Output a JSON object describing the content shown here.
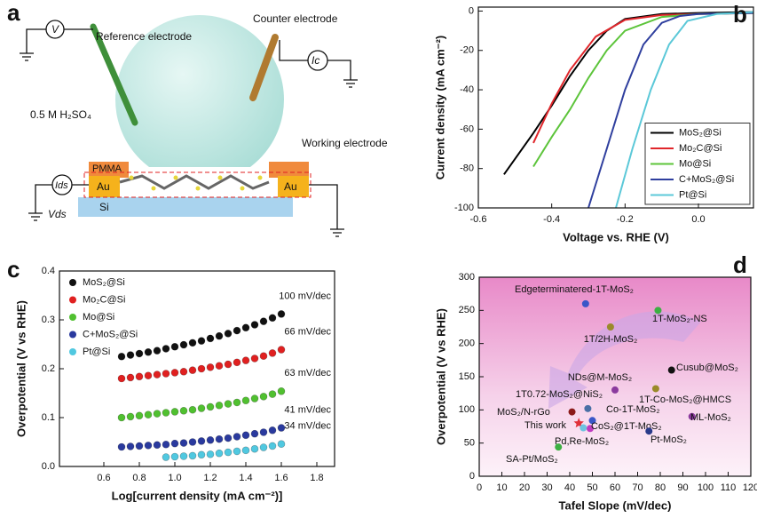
{
  "diagram": {
    "panel": "a",
    "reference": "Reference electrode",
    "counter": "Counter electrode",
    "electrolyte": "0.5 M H₂SO₄",
    "working": "Working electrode",
    "pmma": "PMMA",
    "au_left": "Au",
    "au_right": "Au",
    "si": "Si",
    "voltmeter": "V",
    "ic": "Ic",
    "ids": "Ids",
    "vds": "Vds"
  },
  "chart_data": [
    {
      "panel": "b",
      "type": "line",
      "xlabel": "Voltage vs. RHE (V)",
      "ylabel": "Current density (mA cm⁻²)",
      "xlim": [
        -0.6,
        0.15
      ],
      "ylim": [
        -100,
        2
      ],
      "xticks": [
        -0.6,
        -0.4,
        -0.2,
        {
          "value": 0,
          "label": "0.0"
        }
      ],
      "yticks": [
        -100,
        -80,
        -60,
        -40,
        -20,
        0
      ],
      "legend": "lower right",
      "series": [
        {
          "name": "MoS₂@Si",
          "color": "#000000",
          "x": [
            -0.53,
            -0.45,
            -0.4,
            -0.35,
            -0.3,
            -0.25,
            -0.2,
            -0.1,
            0,
            0.15
          ],
          "values": [
            -83,
            -62,
            -48,
            -33,
            -20,
            -10,
            -4,
            -1.5,
            -1,
            -0.5
          ]
        },
        {
          "name": "Mo₂C@Si",
          "color": "#e0262b",
          "x": [
            -0.45,
            -0.4,
            -0.35,
            -0.28,
            -0.2,
            -0.1,
            0,
            0.15
          ],
          "values": [
            -67,
            -47,
            -30,
            -13,
            -4.5,
            -2,
            -1.5,
            -1
          ]
        },
        {
          "name": "Mo@Si",
          "color": "#5cc43a",
          "x": [
            -0.45,
            -0.4,
            -0.35,
            -0.3,
            -0.25,
            -0.2,
            -0.1,
            0,
            0.15
          ],
          "values": [
            -79,
            -64,
            -50,
            -34,
            -20,
            -10,
            -3,
            -1.5,
            -1
          ]
        },
        {
          "name": "C+MoS₂@Si",
          "color": "#2f3f9e",
          "x": [
            -0.3,
            -0.25,
            -0.2,
            -0.15,
            -0.1,
            -0.05,
            0,
            0.15
          ],
          "values": [
            -100,
            -70,
            -40,
            -17,
            -6,
            -2.5,
            -1.5,
            -1
          ]
        },
        {
          "name": "Pt@Si",
          "color": "#5bc8d8",
          "x": [
            -0.225,
            -0.18,
            -0.13,
            -0.08,
            -0.03,
            0.05,
            0.15
          ],
          "values": [
            -100,
            -70,
            -40,
            -17,
            -5,
            -1.5,
            -0.5
          ]
        }
      ]
    },
    {
      "panel": "c",
      "type": "scatter",
      "xlabel": "Log[current density (mA cm⁻²)]",
      "ylabel": "Overpotential (V vs RHE)",
      "xlim": [
        0.35,
        1.9
      ],
      "ylim": [
        0,
        0.4
      ],
      "xticks": [
        0.6,
        0.8,
        {
          "value": 1,
          "label": "1.0"
        },
        1.2,
        1.4,
        1.6,
        1.8
      ],
      "yticks": [
        {
          "value": 0,
          "label": "0.0"
        },
        0.1,
        0.2,
        0.3,
        0.4
      ],
      "legend": "upper left",
      "series": [
        {
          "name": "MoS₂@Si",
          "color": "#111111",
          "x": [
            0.7,
            0.75,
            0.8,
            0.85,
            0.9,
            0.95,
            1,
            1.05,
            1.1,
            1.15,
            1.2,
            1.25,
            1.3,
            1.35,
            1.4,
            1.45,
            1.5,
            1.55,
            1.6
          ],
          "values": [
            0.225,
            0.228,
            0.231,
            0.234,
            0.237,
            0.241,
            0.245,
            0.249,
            0.253,
            0.257,
            0.262,
            0.267,
            0.272,
            0.278,
            0.284,
            0.29,
            0.297,
            0.304,
            0.312
          ]
        },
        {
          "name": "Mo₂C@Si",
          "color": "#e02020",
          "x": [
            0.7,
            0.75,
            0.8,
            0.85,
            0.9,
            0.95,
            1,
            1.05,
            1.1,
            1.15,
            1.2,
            1.25,
            1.3,
            1.35,
            1.4,
            1.45,
            1.5,
            1.55,
            1.6
          ],
          "values": [
            0.18,
            0.182,
            0.184,
            0.186,
            0.188,
            0.19,
            0.192,
            0.194,
            0.197,
            0.2,
            0.203,
            0.206,
            0.209,
            0.213,
            0.217,
            0.221,
            0.226,
            0.232,
            0.239
          ]
        },
        {
          "name": "Mo@Si",
          "color": "#50c030",
          "x": [
            0.7,
            0.75,
            0.8,
            0.85,
            0.9,
            0.95,
            1,
            1.05,
            1.1,
            1.15,
            1.2,
            1.25,
            1.3,
            1.35,
            1.4,
            1.45,
            1.5,
            1.55,
            1.6
          ],
          "values": [
            0.1,
            0.102,
            0.104,
            0.106,
            0.108,
            0.11,
            0.112,
            0.114,
            0.116,
            0.119,
            0.122,
            0.125,
            0.128,
            0.131,
            0.135,
            0.139,
            0.143,
            0.148,
            0.154
          ]
        },
        {
          "name": "C+MoS₂@Si",
          "color": "#2a3a9e",
          "x": [
            0.7,
            0.75,
            0.8,
            0.85,
            0.9,
            0.95,
            1,
            1.05,
            1.1,
            1.15,
            1.2,
            1.25,
            1.3,
            1.35,
            1.4,
            1.45,
            1.5,
            1.55,
            1.6
          ],
          "values": [
            0.04,
            0.041,
            0.042,
            0.043,
            0.044,
            0.045,
            0.047,
            0.048,
            0.05,
            0.052,
            0.054,
            0.056,
            0.058,
            0.061,
            0.064,
            0.067,
            0.07,
            0.074,
            0.079
          ]
        },
        {
          "name": "Pt@Si",
          "color": "#50c8e0",
          "x": [
            0.95,
            1,
            1.05,
            1.1,
            1.15,
            1.2,
            1.25,
            1.3,
            1.35,
            1.4,
            1.45,
            1.5,
            1.55,
            1.6
          ],
          "values": [
            0.019,
            0.02,
            0.021,
            0.022,
            0.024,
            0.025,
            0.027,
            0.029,
            0.031,
            0.033,
            0.036,
            0.039,
            0.042,
            0.046
          ]
        }
      ],
      "annotations": [
        "100 mV/dec",
        "66 mV/dec",
        "63 mV/dec",
        "41 mV/dec",
        "34 mV/dec"
      ]
    },
    {
      "panel": "d",
      "type": "scatter",
      "xlabel": "Tafel Slope (mV/dec)",
      "ylabel": "Overpotential (V vs RHE)",
      "xlim": [
        0,
        120
      ],
      "ylim": [
        0,
        300
      ],
      "xticks": [
        0,
        10,
        20,
        30,
        40,
        50,
        60,
        70,
        80,
        90,
        100,
        110,
        120
      ],
      "yticks": [
        0,
        50,
        100,
        150,
        200,
        250,
        300
      ],
      "points": [
        {
          "label": "Edgeterminatered-1T-MoS₂",
          "x": 47,
          "y": 260,
          "color": "#3a56c8"
        },
        {
          "label": "1T-MoS₂-NS",
          "x": 79,
          "y": 250,
          "color": "#3cb043"
        },
        {
          "label": "1T/2H-MoS₂",
          "x": 58,
          "y": 225,
          "color": "#9a8a2a"
        },
        {
          "label": "Cusub@MoS₂",
          "x": 85,
          "y": 160,
          "color": "#111111"
        },
        {
          "label": "NDs@M-MoS₂",
          "x": 60,
          "y": 130,
          "color": "#8b3a9e"
        },
        {
          "label": "1T-Co-MoS₂@HMCS",
          "x": 78,
          "y": 132,
          "color": "#9a8a2a"
        },
        {
          "label": "1T0.72-MoS₂@NiS₂",
          "x": 48,
          "y": 102,
          "color": "#4a6fa5"
        },
        {
          "label": "MoS₂/N-rGo",
          "x": 41,
          "y": 97,
          "color": "#8b1a1a"
        },
        {
          "label": "Co-1T-MoS₂",
          "x": 50,
          "y": 84,
          "color": "#3a56c8"
        },
        {
          "label": "ML-MoS₂",
          "x": 94,
          "y": 90,
          "color": "#8b3a9e"
        },
        {
          "label": "This work",
          "x": 44,
          "y": 80,
          "color": "#e0303a"
        },
        {
          "label": "CoS₂@1T-MoS₂",
          "x": 49,
          "y": 72,
          "color": "#c03cc0"
        },
        {
          "label": "Pd,Re-MoS₂",
          "x": 46,
          "y": 73,
          "color": "#6fc3e0"
        },
        {
          "label": "Pt-MoS₂",
          "x": 75,
          "y": 68,
          "color": "#2a3a8a"
        },
        {
          "label": "SA-Pt/MoS₂",
          "x": 35,
          "y": 44,
          "color": "#3cb043"
        }
      ]
    }
  ]
}
